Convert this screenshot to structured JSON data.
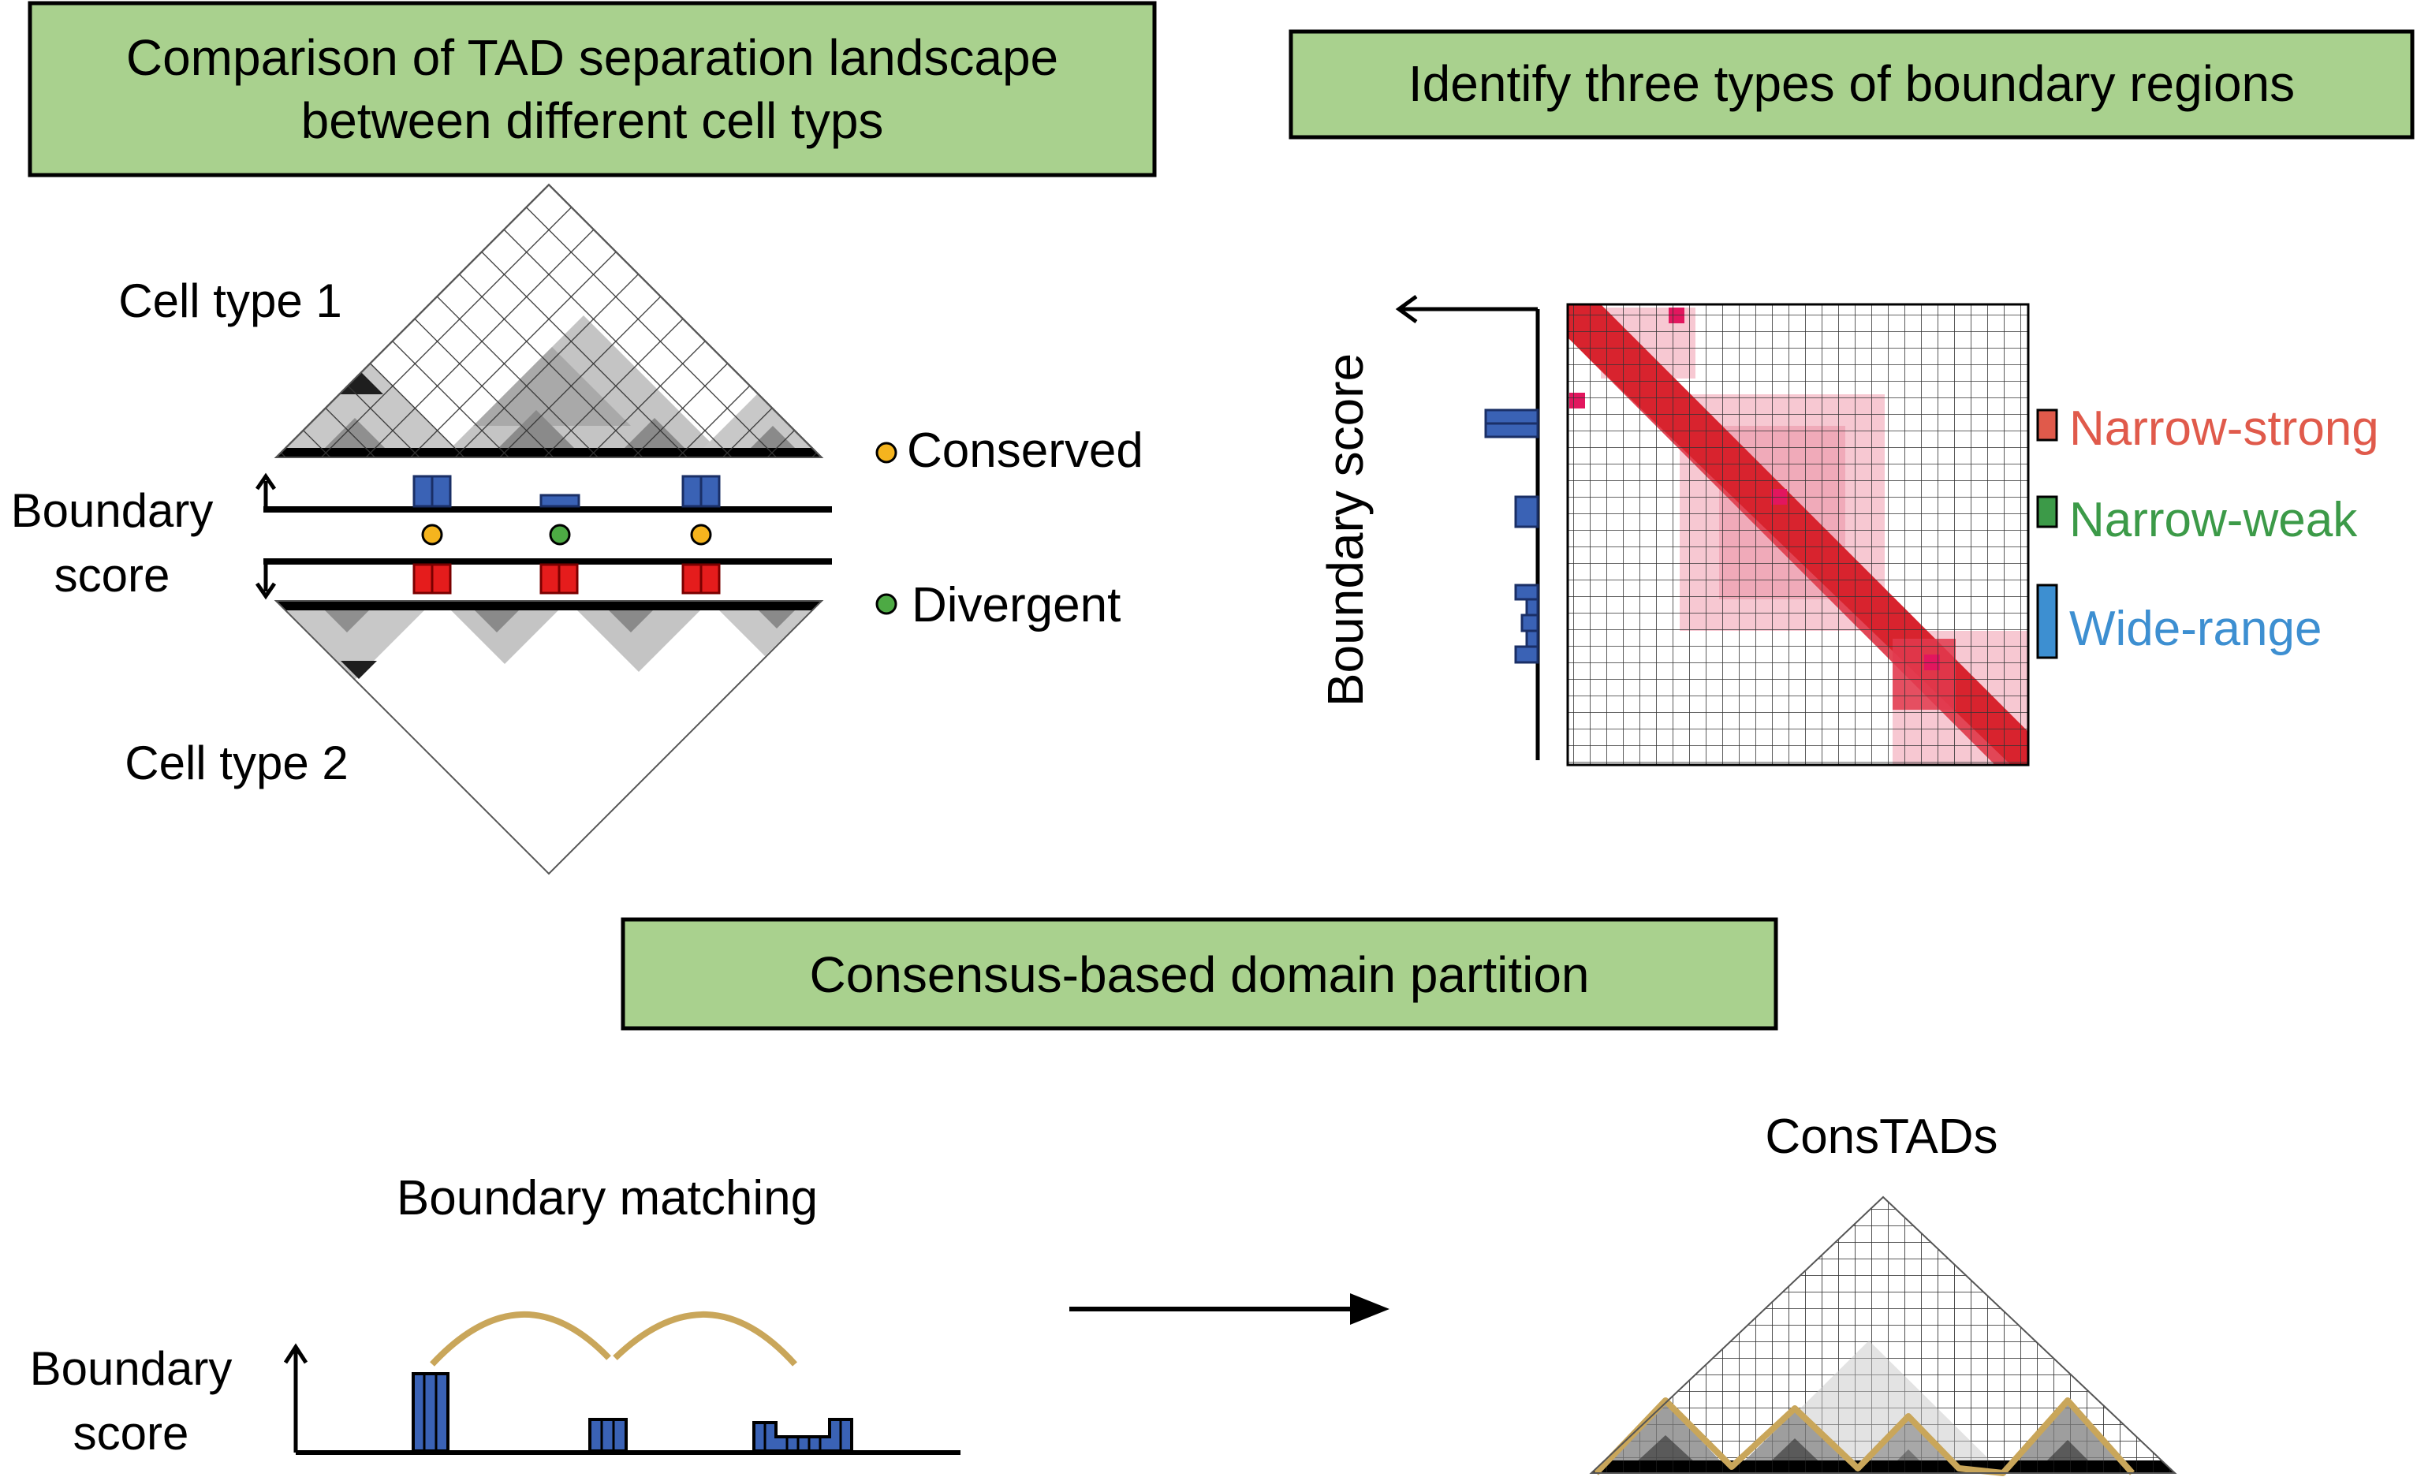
{
  "panel_tad_comparison": {
    "title_line1": "Comparison of TAD separation landscape",
    "title_line2": "between different cell typs",
    "cell_type_1": "Cell type 1",
    "cell_type_2": "Cell type 2",
    "boundary_score_line1": "Boundary",
    "boundary_score_line2": "score",
    "legend": [
      {
        "label": "Conserved",
        "color": "#f5b41e"
      },
      {
        "label": "Divergent",
        "color": "#4daa44"
      }
    ],
    "boundary_markers": [
      "Conserved",
      "Divergent",
      "Conserved"
    ]
  },
  "panel_boundary_types": {
    "title": "Identify three types of boundary regions",
    "axis_label": "Boundary score",
    "types": [
      {
        "label": "Narrow-strong",
        "color": "#e05a4b"
      },
      {
        "label": "Narrow-weak",
        "color": "#3c9a48"
      },
      {
        "label": "Wide-range",
        "color": "#3d8fd1"
      }
    ]
  },
  "panel_consensus": {
    "title": "Consensus-based domain partition",
    "matching_label": "Boundary matching",
    "boundary_score_line1": "Boundary",
    "boundary_score_line2": "score",
    "result_label": "ConsTADs"
  },
  "colors": {
    "banner_fill": "#a9d18e",
    "bar_blue": "#3a62b5",
    "bar_red": "#e51c1c",
    "arc_gold": "#c9a65a",
    "heatmap_red": "#d8232e",
    "heatmap_pink": "#f7c8d2"
  }
}
